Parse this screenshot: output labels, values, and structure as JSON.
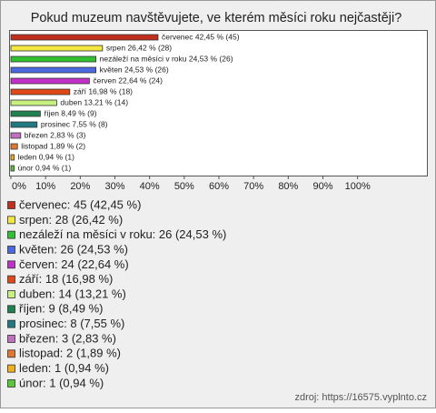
{
  "chart_data": {
    "type": "bar",
    "orientation": "horizontal",
    "title": "Pokud muzeum navštěvujete, ve kterém měsíci roku nejčastěji?",
    "categories": [
      "červenec",
      "srpen",
      "nezáleží na měsíci v roku",
      "květen",
      "červen",
      "září",
      "duben",
      "říjen",
      "prosinec",
      "březen",
      "listopad",
      "leden",
      "únor"
    ],
    "values": [
      42.45,
      26.42,
      24.53,
      24.53,
      22.64,
      16.98,
      13.21,
      8.49,
      7.55,
      2.83,
      1.89,
      0.94,
      0.94
    ],
    "value_labels": [
      "červenec 42,45 % (45)",
      "srpen 26,42 % (28)",
      "nezáleží na měsíci v roku 24,53 % (26)",
      "květen 24,53 % (26)",
      "červen 22,64 % (24)",
      "září 16,98 % (18)",
      "duben 13,21 % (14)",
      "říjen 8,49 % (9)",
      "prosinec 7,55 % (8)",
      "březen 2,83 % (3)",
      "listopad 1,89 % (2)",
      "leden 0,94 % (1)",
      "únor 0,94 % (1)"
    ],
    "colors": [
      "#c0301c",
      "#f2e640",
      "#30c030",
      "#4a68e0",
      "#c030c8",
      "#e04818",
      "#c8f080",
      "#208050",
      "#207880",
      "#c070c0",
      "#e07830",
      "#f0b020",
      "#58c838"
    ],
    "legend": [
      "červenec: 45 (42,45 %)",
      "srpen: 28 (26,42 %)",
      "nezáleží na měsíci v roku: 26 (24,53 %)",
      "květen: 26 (24,53 %)",
      "červen: 24 (22,64 %)",
      "září: 18 (16,98 %)",
      "duben: 14 (13,21 %)",
      "říjen: 9 (8,49 %)",
      "prosinec: 8 (7,55 %)",
      "březen: 3 (2,83 %)",
      "listopad: 2 (1,89 %)",
      "leden: 1 (0,94 %)",
      "únor: 1 (0,94 %)"
    ],
    "xlim": [
      0,
      120
    ],
    "xticks": [
      {
        "value": 0,
        "label": "0%"
      },
      {
        "value": 10,
        "label": "10%"
      },
      {
        "value": 20,
        "label": "20%"
      },
      {
        "value": 30,
        "label": "30%"
      },
      {
        "value": 40,
        "label": "40%"
      },
      {
        "value": 50,
        "label": "50%"
      },
      {
        "value": 60,
        "label": "60%"
      },
      {
        "value": 70,
        "label": "70%"
      },
      {
        "value": 80,
        "label": "80%"
      },
      {
        "value": 90,
        "label": "90%"
      },
      {
        "value": 100,
        "label": "100%"
      }
    ],
    "grid": false,
    "source": "zdroj: https://16575.vyplnto.cz"
  }
}
